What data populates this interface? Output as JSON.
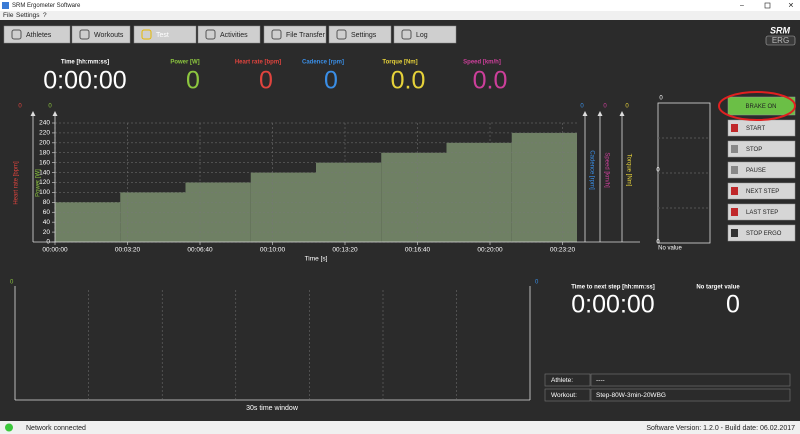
{
  "window": {
    "title": "SRM Ergometer Software",
    "menu": [
      "File",
      "Settings",
      "?"
    ]
  },
  "tabs": [
    "Athletes",
    "Workouts",
    "Test",
    "Activities",
    "File Transfer",
    "Settings",
    "Log"
  ],
  "logo": [
    "SRM",
    "ERG"
  ],
  "metrics": [
    {
      "label": "Time [hh:mm:ss]",
      "value": "0:00:00",
      "color": "#ffffff"
    },
    {
      "label": "Power [W]",
      "value": "0",
      "color": "#8cc63f"
    },
    {
      "label": "Heart rate [bpm]",
      "value": "0",
      "color": "#e0443e"
    },
    {
      "label": "Cadence [rpm]",
      "value": "0",
      "color": "#3a8ee6"
    },
    {
      "label": "Torque [Nm]",
      "value": "0.0",
      "color": "#e6d23a"
    },
    {
      "label": "Speed [km/h]",
      "value": "0.0",
      "color": "#cc3f9a"
    }
  ],
  "chart_data": {
    "type": "step-area",
    "x_label": "Time [s]",
    "y_label": "Power [W]",
    "color": "#6f8064",
    "x": [
      0,
      180,
      360,
      540,
      720,
      900,
      1080,
      1260
    ],
    "values": [
      80,
      100,
      120,
      140,
      160,
      180,
      200,
      220
    ],
    "xlim": [
      0,
      1440
    ],
    "ylim": [
      0,
      240
    ],
    "xticks": [
      {
        "value": 0,
        "label": "00:00:00"
      },
      {
        "value": 200,
        "label": "00:03:20"
      },
      {
        "value": 400,
        "label": "00:06:40"
      },
      {
        "value": 600,
        "label": "00:10:00"
      },
      {
        "value": 800,
        "label": "00:13:20"
      },
      {
        "value": 1000,
        "label": "00:16:40"
      },
      {
        "value": 1200,
        "label": "00:20:00"
      },
      {
        "value": 1400,
        "label": "00:23:20"
      }
    ],
    "yticks": [
      0,
      20,
      40,
      60,
      80,
      100,
      120,
      140,
      160,
      180,
      200,
      220,
      240
    ],
    "grid": true,
    "left_axes": [
      {
        "label": "Heart rate [bpm]",
        "color": "#e0443e",
        "indicator": "0"
      },
      {
        "label": "Power [W]",
        "color": "#8cc63f",
        "indicator": "0"
      }
    ],
    "right_axes": [
      {
        "label": "Cadence [rpm]",
        "color": "#3a8ee6",
        "indicator": "0"
      },
      {
        "label": "Speed [km/h]",
        "color": "#cc3f9a",
        "indicator": "0"
      },
      {
        "label": "Torque [Nm]",
        "color": "#e6d23a",
        "indicator": "0"
      }
    ]
  },
  "gauge": {
    "labels": [
      "0",
      "0",
      "0"
    ],
    "caption": "No value"
  },
  "buttons": [
    "BRAKE ON",
    "START",
    "STOP",
    "PAUSE",
    "NEXT STEP",
    "LAST STEP",
    "STOP ERGO"
  ],
  "window_chart": {
    "title": "30s time window",
    "left": "0",
    "right": "0"
  },
  "next_step": {
    "label": "Time to next step [hh:mm:ss]",
    "value": "0:00:00"
  },
  "target": {
    "label": "No target value",
    "value": "0"
  },
  "info": [
    {
      "label": "Athlete:",
      "value": "----"
    },
    {
      "label": "Workout:",
      "value": "Step-80W-3min-20WBG"
    }
  ],
  "status": {
    "left": "Network connected",
    "right": "Software Version: 1.2.0 - Build date: 06.02.2017"
  }
}
